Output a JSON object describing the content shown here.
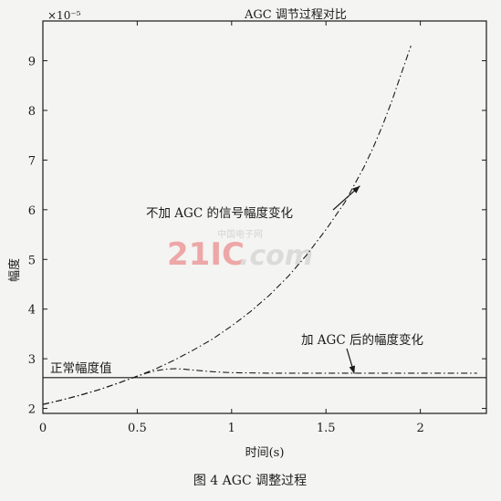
{
  "chart_data": {
    "type": "line",
    "title": "AGC 调节过程对比",
    "caption": "图 4  AGC 调整过程",
    "xlabel": "时间(s)",
    "ylabel": "幅度",
    "y_multiplier": "×10⁻⁵",
    "xlim": [
      0,
      2.35
    ],
    "ylim": [
      1.9,
      9.8
    ],
    "x_ticks": [
      0,
      0.5,
      1,
      1.5,
      2
    ],
    "x_tick_labels": [
      "0",
      "0.5",
      "1",
      "1.5",
      "2"
    ],
    "y_ticks": [
      2,
      3,
      4,
      5,
      6,
      7,
      8,
      9
    ],
    "y_tick_labels": [
      "2",
      "3",
      "4",
      "5",
      "6",
      "7",
      "8",
      "9"
    ],
    "grid": false,
    "series": [
      {
        "name": "不加 AGC 的信号幅度变化",
        "style": "dashdot",
        "x": [
          0,
          0.1,
          0.2,
          0.3,
          0.4,
          0.5,
          0.6,
          0.7,
          0.8,
          0.9,
          1.0,
          1.1,
          1.2,
          1.3,
          1.4,
          1.5,
          1.6,
          1.7,
          1.75,
          1.8,
          1.85,
          1.9,
          1.95
        ],
        "y": [
          2.08,
          2.17,
          2.27,
          2.38,
          2.51,
          2.65,
          2.8,
          2.98,
          3.18,
          3.4,
          3.66,
          3.95,
          4.28,
          4.66,
          5.1,
          5.6,
          6.15,
          6.85,
          7.25,
          7.7,
          8.2,
          8.75,
          9.3
        ]
      },
      {
        "name": "加 AGC 后的幅度变化",
        "style": "dashdot",
        "x": [
          0,
          0.1,
          0.2,
          0.3,
          0.4,
          0.5,
          0.55,
          0.6,
          0.65,
          0.7,
          0.75,
          0.8,
          0.9,
          1.0,
          1.2,
          1.4,
          1.6,
          1.8,
          2.0,
          2.3
        ],
        "y": [
          2.08,
          2.17,
          2.27,
          2.38,
          2.51,
          2.65,
          2.71,
          2.76,
          2.79,
          2.8,
          2.79,
          2.77,
          2.74,
          2.72,
          2.71,
          2.71,
          2.71,
          2.71,
          2.71,
          2.71
        ]
      },
      {
        "name": "正常幅度值",
        "style": "solid",
        "x": [
          0,
          2.35
        ],
        "y": [
          2.62,
          2.62
        ]
      }
    ],
    "annotations": [
      {
        "text": "不加 AGC 的信号幅度变化",
        "arrow_to": [
          1.68,
          6.48
        ]
      },
      {
        "text": "加 AGC 后的幅度变化",
        "arrow_to": [
          1.65,
          2.7
        ]
      },
      {
        "text": "正常幅度值"
      }
    ]
  },
  "watermark": {
    "brand": "21IC",
    "domain": ".com",
    "site_name": "中国电子网"
  },
  "colors": {
    "ink": "#1a1a1a",
    "background": "#f4f4f2",
    "watermark_red": "#e86a6a",
    "watermark_gray": "#c8c8c8"
  }
}
